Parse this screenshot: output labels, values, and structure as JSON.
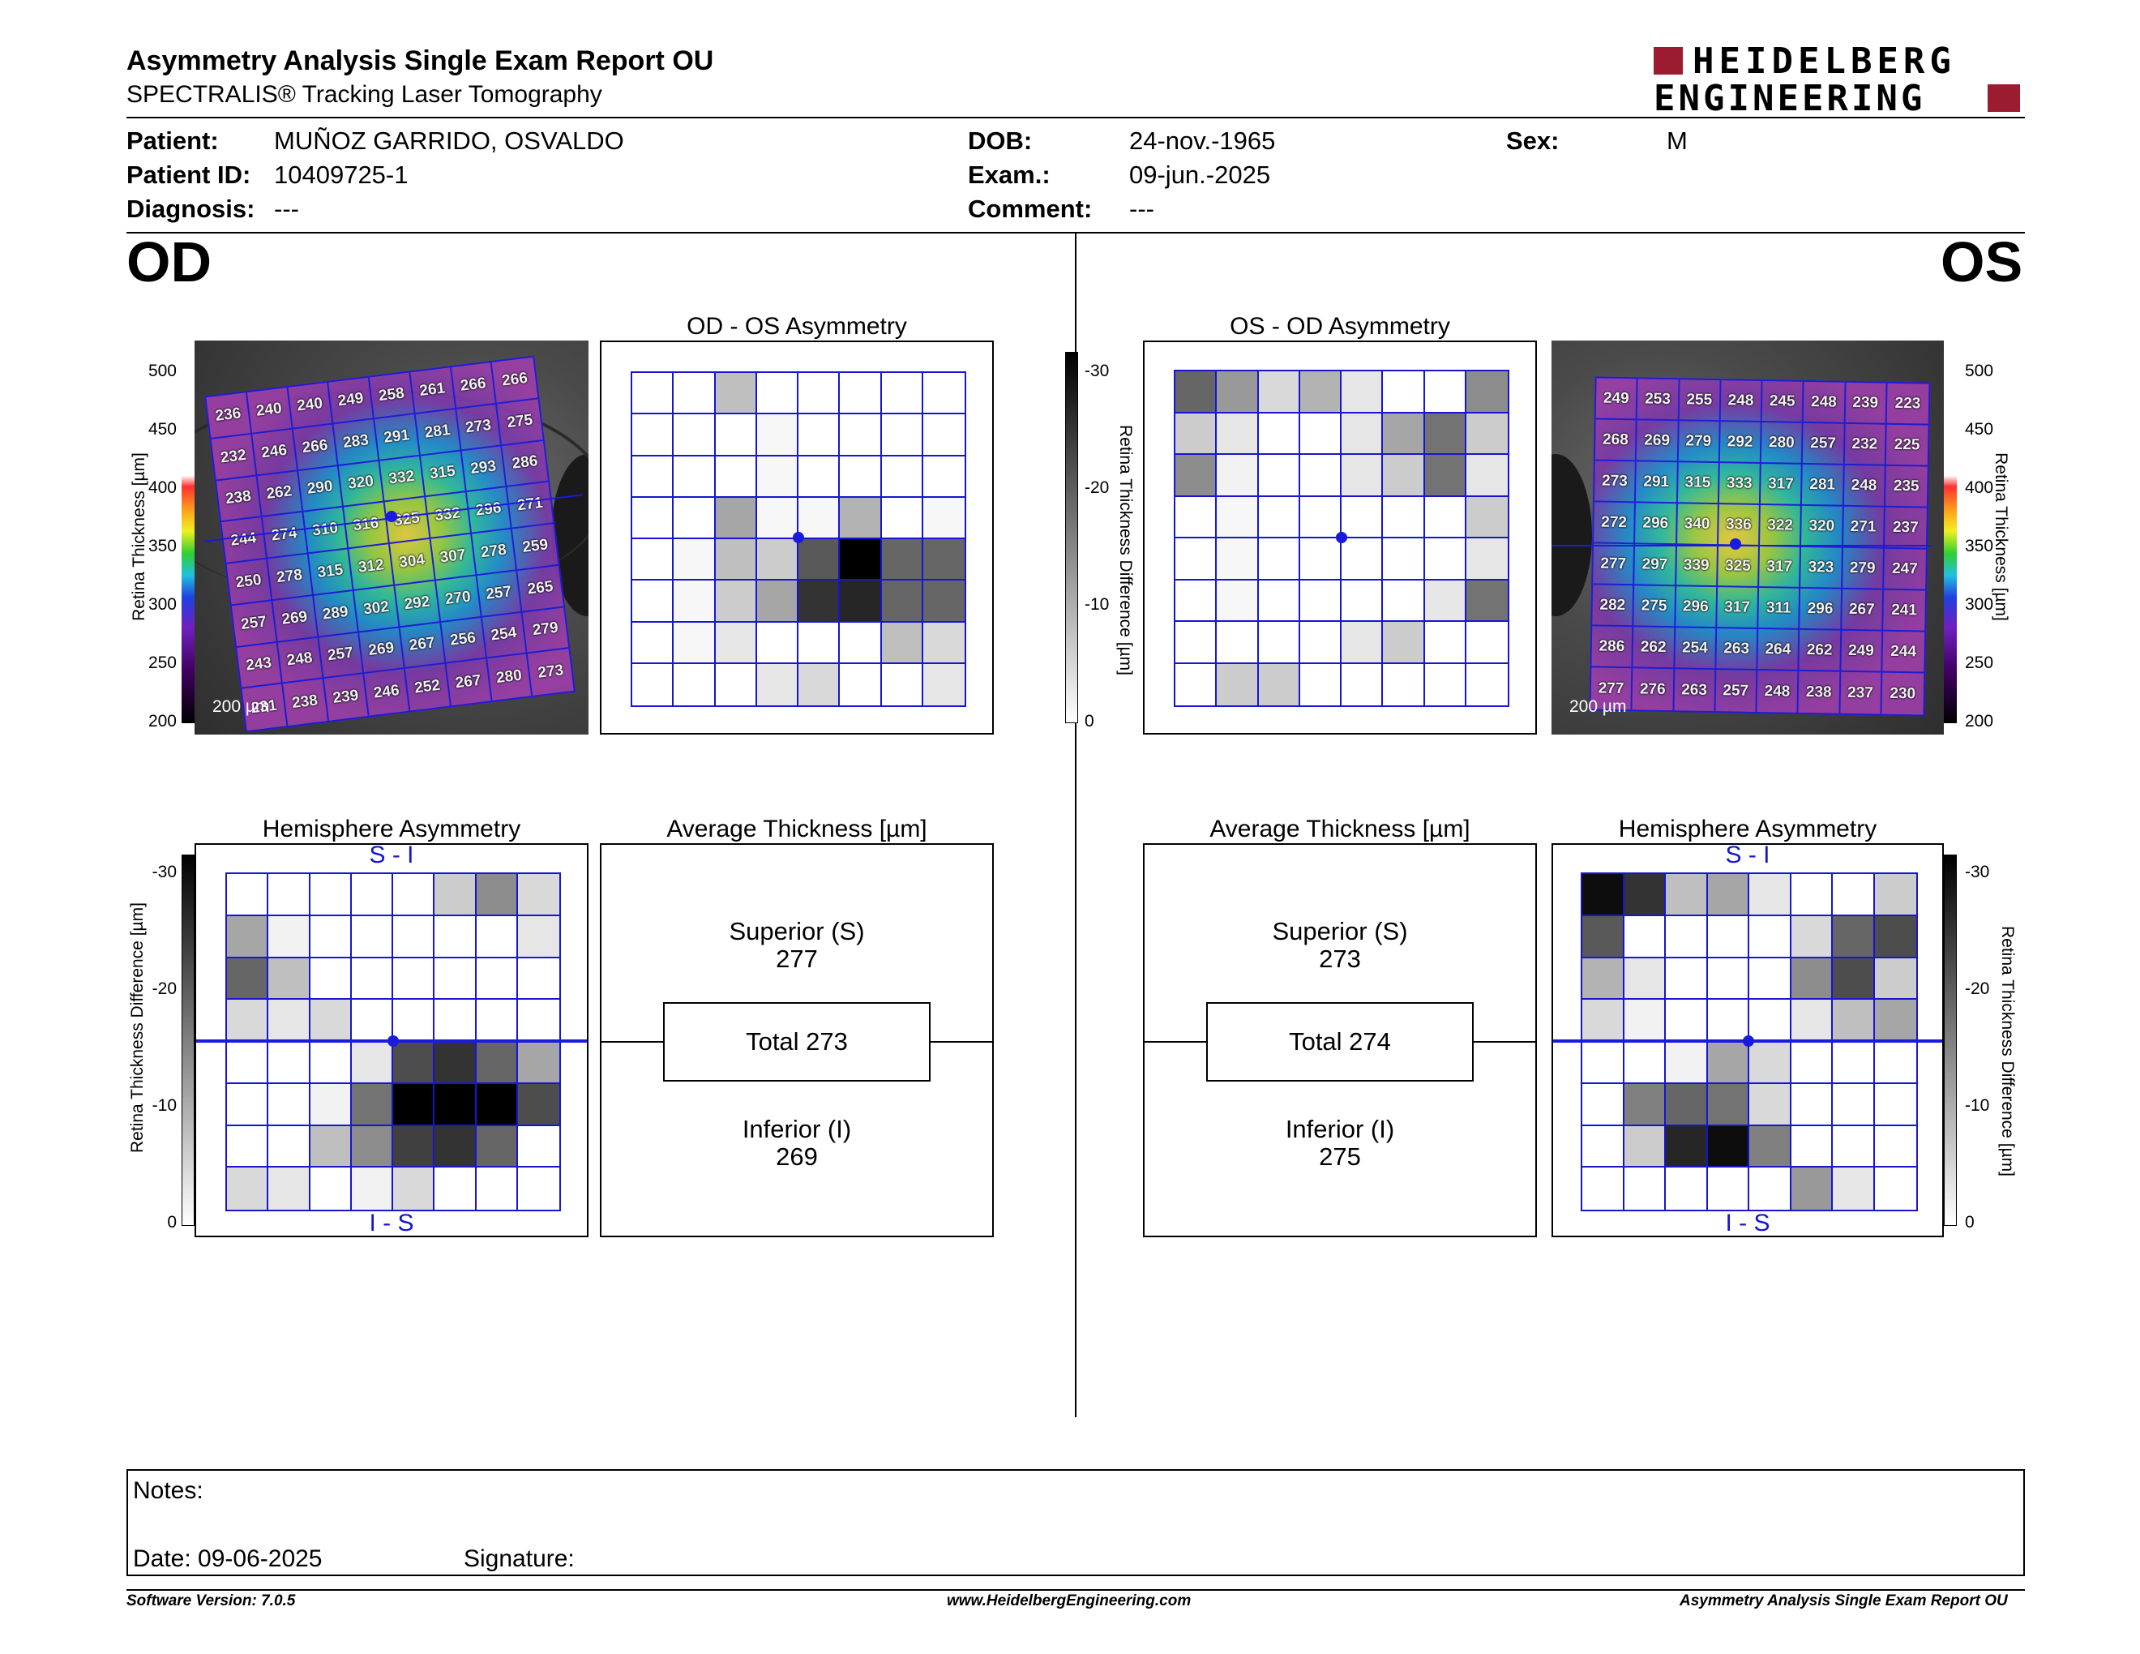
{
  "report": {
    "title": "Asymmetry Analysis Single Exam Report OU",
    "subtitle": "SPECTRALIS® Tracking Laser Tomography"
  },
  "logo": {
    "line1": "HEIDELBERG",
    "line2": "ENGINEERING",
    "color": "#9b1b30"
  },
  "patient": {
    "patient_label": "Patient:",
    "patient_value": "MUÑOZ GARRIDO, OSVALDO",
    "id_label": "Patient ID:",
    "id_value": "10409725-1",
    "diagnosis_label": "Diagnosis:",
    "diagnosis_value": "---",
    "dob_label": "DOB:",
    "dob_value": "24-nov.-1965",
    "exam_label": "Exam.:",
    "exam_value": "09-jun.-2025",
    "comment_label": "Comment:",
    "comment_value": "---",
    "sex_label": "Sex:",
    "sex_value": "M"
  },
  "od": {
    "label": "OD",
    "scale_um": "200 µm",
    "thickness_axis_label": "Retina Thickness [µm]",
    "thickness_ticks": [
      "500",
      "450",
      "400",
      "350",
      "300",
      "250",
      "200"
    ],
    "thickness_grid": [
      [
        236,
        240,
        240,
        249,
        258,
        261,
        266,
        266
      ],
      [
        232,
        246,
        266,
        283,
        291,
        281,
        273,
        275
      ],
      [
        238,
        262,
        290,
        320,
        332,
        315,
        293,
        286
      ],
      [
        244,
        274,
        310,
        316,
        325,
        332,
        296,
        271
      ],
      [
        250,
        278,
        315,
        312,
        304,
        307,
        278,
        259
      ],
      [
        257,
        269,
        289,
        302,
        292,
        270,
        257,
        265
      ],
      [
        243,
        248,
        257,
        269,
        267,
        256,
        254,
        279
      ],
      [
        231,
        238,
        239,
        246,
        252,
        267,
        280,
        273
      ]
    ],
    "asym_title": "OD - OS Asymmetry",
    "asym_grid": [
      [
        0,
        0,
        25,
        0,
        0,
        0,
        0,
        0
      ],
      [
        0,
        0,
        0,
        3,
        0,
        0,
        0,
        0
      ],
      [
        0,
        0,
        0,
        3,
        0,
        0,
        0,
        0
      ],
      [
        0,
        0,
        35,
        3,
        3,
        30,
        0,
        3
      ],
      [
        0,
        3,
        25,
        20,
        65,
        100,
        60,
        60
      ],
      [
        0,
        3,
        20,
        35,
        80,
        85,
        60,
        60
      ],
      [
        0,
        3,
        10,
        0,
        0,
        0,
        25,
        15
      ],
      [
        0,
        0,
        0,
        10,
        15,
        0,
        0,
        10
      ]
    ],
    "hemi_title": "Hemisphere Asymmetry",
    "hemi_top": "S - I",
    "hemi_bottom": "I - S",
    "hemi_grid": [
      [
        0,
        0,
        0,
        0,
        0,
        20,
        45,
        15
      ],
      [
        35,
        5,
        0,
        0,
        0,
        0,
        0,
        10
      ],
      [
        60,
        25,
        0,
        0,
        0,
        0,
        0,
        0
      ],
      [
        15,
        10,
        15,
        0,
        0,
        0,
        0,
        0
      ],
      [
        0,
        0,
        0,
        10,
        70,
        80,
        60,
        35
      ],
      [
        0,
        0,
        5,
        55,
        100,
        100,
        100,
        70
      ],
      [
        0,
        0,
        25,
        45,
        75,
        80,
        60,
        0
      ],
      [
        15,
        10,
        0,
        5,
        15,
        0,
        0,
        0
      ]
    ],
    "diff_axis_label": "Retina Thickness Difference [µm]",
    "diff_ticks": [
      "-30",
      "-20",
      "-10",
      "0"
    ],
    "avg_title": "Average Thickness [µm]",
    "superior_label": "Superior (S)",
    "superior_value": "277",
    "total_label": "Total 273",
    "inferior_label": "Inferior (I)",
    "inferior_value": "269"
  },
  "os": {
    "label": "OS",
    "scale_um": "200 µm",
    "thickness_axis_label": "Retina Thickness [µm]",
    "thickness_ticks": [
      "500",
      "450",
      "400",
      "350",
      "300",
      "250",
      "200"
    ],
    "thickness_grid": [
      [
        249,
        253,
        255,
        248,
        245,
        248,
        239,
        223
      ],
      [
        268,
        269,
        279,
        292,
        280,
        257,
        232,
        225
      ],
      [
        273,
        291,
        315,
        333,
        317,
        281,
        248,
        235
      ],
      [
        272,
        296,
        340,
        336,
        322,
        320,
        271,
        237
      ],
      [
        277,
        297,
        339,
        325,
        317,
        323,
        279,
        247
      ],
      [
        282,
        275,
        296,
        317,
        311,
        296,
        267,
        241
      ],
      [
        286,
        262,
        254,
        263,
        264,
        262,
        249,
        244
      ],
      [
        277,
        276,
        263,
        257,
        248,
        238,
        237,
        230
      ]
    ],
    "asym_title": "OS - OD Asymmetry",
    "asym_grid": [
      [
        60,
        40,
        15,
        30,
        10,
        0,
        0,
        45
      ],
      [
        20,
        10,
        0,
        0,
        10,
        35,
        55,
        20
      ],
      [
        45,
        5,
        0,
        0,
        10,
        20,
        55,
        10
      ],
      [
        0,
        3,
        0,
        0,
        0,
        0,
        0,
        20
      ],
      [
        0,
        3,
        0,
        0,
        0,
        0,
        0,
        10
      ],
      [
        0,
        3,
        0,
        0,
        0,
        0,
        10,
        55
      ],
      [
        0,
        0,
        0,
        0,
        10,
        20,
        0,
        0
      ],
      [
        0,
        20,
        20,
        0,
        0,
        0,
        0,
        0
      ]
    ],
    "hemi_title": "Hemisphere Asymmetry",
    "hemi_top": "S - I",
    "hemi_bottom": "I - S",
    "hemi_grid": [
      [
        95,
        80,
        25,
        35,
        10,
        0,
        0,
        20
      ],
      [
        65,
        0,
        0,
        0,
        0,
        15,
        60,
        70
      ],
      [
        30,
        10,
        0,
        0,
        0,
        45,
        70,
        20
      ],
      [
        15,
        5,
        0,
        0,
        0,
        10,
        25,
        35
      ],
      [
        0,
        0,
        5,
        35,
        15,
        0,
        0,
        0
      ],
      [
        0,
        50,
        60,
        55,
        15,
        0,
        0,
        0
      ],
      [
        0,
        20,
        85,
        95,
        50,
        0,
        0,
        0
      ],
      [
        0,
        0,
        0,
        0,
        0,
        40,
        10,
        0
      ]
    ],
    "diff_axis_label": "Retina Thickness Difference [µm]",
    "diff_ticks": [
      "-30",
      "-20",
      "-10",
      "0"
    ],
    "avg_title": "Average Thickness [µm]",
    "superior_label": "Superior (S)",
    "superior_value": "273",
    "total_label": "Total 274",
    "inferior_label": "Inferior (I)",
    "inferior_value": "275"
  },
  "notes": {
    "notes_label": "Notes:",
    "date_label": "Date: 09-06-2025",
    "signature_label": "Signature:"
  },
  "footer": {
    "software": "Software Version: 7.0.5",
    "website": "www.HeidelbergEngineering.com",
    "report_name": "Asymmetry Analysis Single Exam Report OU"
  }
}
